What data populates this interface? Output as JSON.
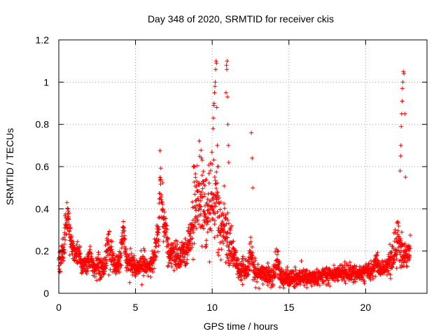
{
  "chart_data": {
    "type": "scatter",
    "title": "Day 348 of 2020, SRMTID for receiver ckis",
    "xlabel": "GPS time / hours",
    "ylabel": "SRMTID / TECUs",
    "xlim": [
      0,
      24
    ],
    "ylim": [
      0,
      1.2
    ],
    "x_ticks": [
      0,
      5,
      10,
      15,
      20
    ],
    "x_tick_labels": [
      "0",
      "5",
      "10",
      "15",
      "20"
    ],
    "y_ticks": [
      0,
      0.2,
      0.4,
      0.6,
      0.8,
      1.0,
      1.2
    ],
    "y_tick_labels": [
      "0",
      "0.2",
      "0.4",
      "0.6",
      "0.8",
      "1",
      "1.2"
    ],
    "grid": true,
    "legend": "none",
    "marker": "+",
    "color": "#ff0000",
    "envelope": {
      "x": [
        0.0,
        0.3,
        0.5,
        0.6,
        0.8,
        1.0,
        1.3,
        1.5,
        1.8,
        2.0,
        2.3,
        2.5,
        2.8,
        3.0,
        3.2,
        3.4,
        3.7,
        4.0,
        4.2,
        4.4,
        4.7,
        5.0,
        5.3,
        5.6,
        5.9,
        6.2,
        6.5,
        6.6,
        6.8,
        7.0,
        7.2,
        7.5,
        7.8,
        8.0,
        8.3,
        8.6,
        8.8,
        9.0,
        9.2,
        9.4,
        9.6,
        9.8,
        10.0,
        10.2,
        10.4,
        10.6,
        10.8,
        11.0,
        11.2,
        11.5,
        11.8,
        12.0,
        12.3,
        12.5,
        12.7,
        13.0,
        13.3,
        13.6,
        14.0,
        14.2,
        14.5,
        15.0,
        15.5,
        16.0,
        16.5,
        17.0,
        17.5,
        18.0,
        18.5,
        19.0,
        19.5,
        20.0,
        20.5,
        20.7,
        21.0,
        21.3,
        21.6,
        21.9,
        22.1,
        22.3,
        22.5,
        22.7,
        22.9
      ],
      "center": [
        0.15,
        0.2,
        0.33,
        0.35,
        0.24,
        0.2,
        0.19,
        0.12,
        0.13,
        0.18,
        0.11,
        0.13,
        0.12,
        0.13,
        0.25,
        0.2,
        0.13,
        0.16,
        0.3,
        0.17,
        0.15,
        0.12,
        0.13,
        0.15,
        0.12,
        0.17,
        0.3,
        0.5,
        0.38,
        0.28,
        0.17,
        0.18,
        0.16,
        0.2,
        0.18,
        0.3,
        0.38,
        0.45,
        0.5,
        0.43,
        0.35,
        0.4,
        0.48,
        0.45,
        0.38,
        0.3,
        0.32,
        0.25,
        0.23,
        0.17,
        0.1,
        0.12,
        0.11,
        0.2,
        0.12,
        0.09,
        0.1,
        0.08,
        0.09,
        0.14,
        0.08,
        0.06,
        0.08,
        0.08,
        0.07,
        0.08,
        0.09,
        0.09,
        0.1,
        0.1,
        0.09,
        0.1,
        0.11,
        0.15,
        0.11,
        0.12,
        0.15,
        0.2,
        0.24,
        0.2,
        0.18,
        0.18,
        0.22
      ],
      "spread": [
        0.03,
        0.06,
        0.1,
        0.07,
        0.05,
        0.05,
        0.05,
        0.04,
        0.04,
        0.05,
        0.04,
        0.04,
        0.04,
        0.04,
        0.08,
        0.06,
        0.04,
        0.05,
        0.06,
        0.05,
        0.05,
        0.04,
        0.04,
        0.05,
        0.04,
        0.05,
        0.08,
        0.12,
        0.1,
        0.08,
        0.05,
        0.06,
        0.05,
        0.06,
        0.05,
        0.1,
        0.16,
        0.2,
        0.18,
        0.15,
        0.12,
        0.14,
        0.2,
        0.15,
        0.15,
        0.12,
        0.12,
        0.1,
        0.1,
        0.07,
        0.04,
        0.05,
        0.05,
        0.06,
        0.05,
        0.04,
        0.04,
        0.04,
        0.05,
        0.06,
        0.04,
        0.03,
        0.04,
        0.04,
        0.03,
        0.03,
        0.03,
        0.03,
        0.03,
        0.03,
        0.03,
        0.03,
        0.04,
        0.05,
        0.03,
        0.04,
        0.06,
        0.07,
        0.08,
        0.08,
        0.06,
        0.05,
        0.06
      ],
      "points_per_hour": 110,
      "random_seed": 348
    },
    "spikes": {
      "x": [
        10.05,
        10.08,
        10.1,
        10.12,
        10.15,
        10.18,
        10.2,
        10.22,
        10.25,
        10.28,
        10.3,
        10.33,
        10.36,
        10.9,
        10.93,
        10.95,
        10.97,
        11.0,
        11.02,
        11.05,
        11.08,
        12.55,
        12.6,
        12.65,
        22.25,
        22.28,
        22.3,
        22.32,
        22.35,
        22.38,
        22.4,
        22.43,
        22.46,
        22.5,
        22.55,
        22.6
      ],
      "y": [
        0.78,
        0.83,
        0.89,
        0.9,
        0.95,
        0.98,
        1.0,
        1.06,
        1.1,
        1.09,
        0.88,
        0.7,
        0.6,
        0.95,
        1.08,
        1.06,
        1.1,
        0.93,
        0.8,
        0.7,
        0.62,
        0.76,
        0.64,
        0.5,
        0.58,
        0.65,
        0.7,
        0.79,
        0.85,
        0.91,
        0.97,
        1.0,
        1.05,
        1.04,
        0.85,
        0.55
      ]
    }
  }
}
